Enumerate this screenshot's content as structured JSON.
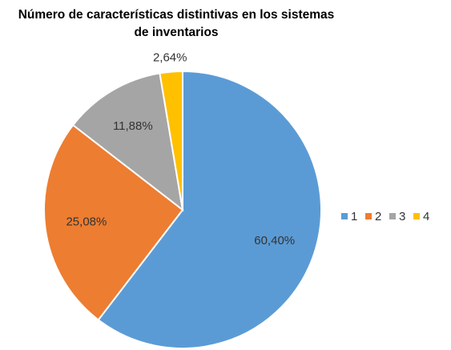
{
  "chart_data": {
    "type": "pie",
    "title": "Número de características distintivas en los sistemas de inventarios",
    "categories": [
      "1",
      "2",
      "3",
      "4"
    ],
    "values": [
      60.4,
      25.08,
      11.88,
      2.64
    ],
    "value_labels": [
      "60,40%",
      "25,08%",
      "11,88%",
      "2,64%"
    ],
    "colors": [
      "#5b9bd5",
      "#ed7d31",
      "#a5a5a5",
      "#ffc000"
    ],
    "legend": "right"
  }
}
